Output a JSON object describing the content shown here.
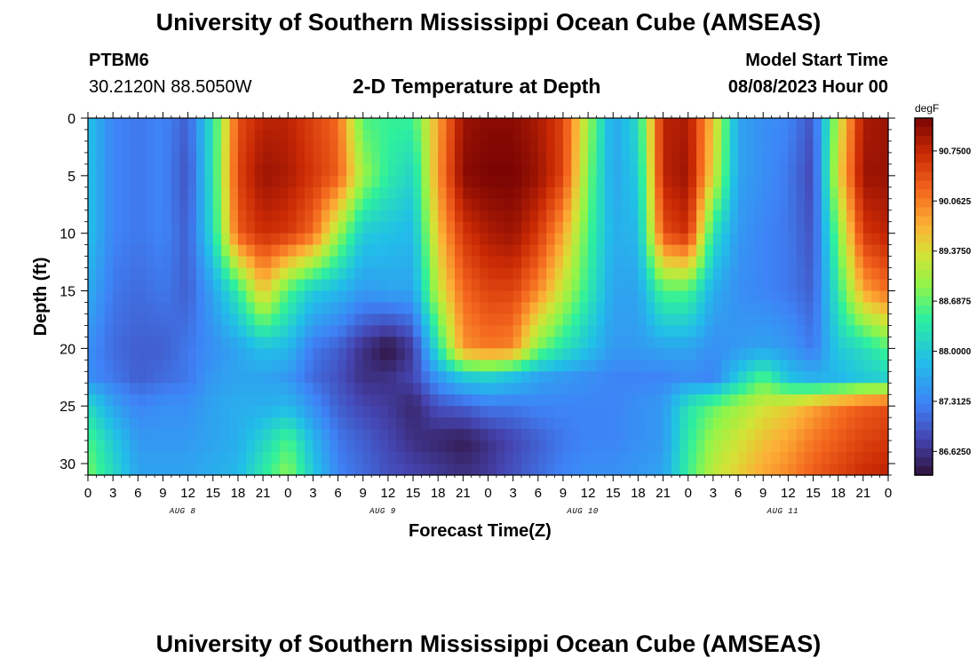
{
  "header": {
    "title": "University of Southern Mississippi Ocean Cube (AMSEAS)",
    "station_id": "PTBM6",
    "station_coords": "30.2120N  88.5050W",
    "plot_title": "2-D Temperature at Depth",
    "model_start_label": "Model Start Time",
    "model_start_value": "08/08/2023 Hour 00"
  },
  "footer": {
    "title": "University of Southern Mississippi Ocean Cube (AMSEAS)"
  },
  "chart_data": {
    "type": "heatmap",
    "title": "2-D Temperature at Depth",
    "xlabel": "Forecast Time(Z)",
    "ylabel": "Depth (ft)",
    "x_range_hours": [
      0,
      96
    ],
    "x_tick_labels": [
      "0",
      "3",
      "6",
      "9",
      "12",
      "15",
      "18",
      "21",
      "0",
      "3",
      "6",
      "9",
      "12",
      "15",
      "18",
      "21",
      "0",
      "3",
      "6",
      "9",
      "12",
      "15",
      "18",
      "21",
      "0",
      "3",
      "6",
      "9",
      "12",
      "15",
      "18",
      "21",
      "0"
    ],
    "day_labels": [
      "AUG 8",
      "AUG 9",
      "AUG 10",
      "AUG 11"
    ],
    "y_range_ft": [
      0,
      31
    ],
    "y_ticks": [
      0,
      5,
      10,
      15,
      20,
      25,
      30
    ],
    "colorbar": {
      "unit": "degF",
      "range": [
        86.3,
        91.2
      ],
      "tick_values": [
        86.625,
        87.3125,
        88.0,
        88.6875,
        89.375,
        90.0625,
        90.75
      ],
      "tick_labels": [
        "86.6250",
        "87.3125",
        "88.0000",
        "88.6875",
        "89.3750",
        "90.0625",
        "90.7500"
      ]
    },
    "profile_times_hours": [
      0,
      3,
      6,
      9,
      12,
      15,
      18,
      21,
      24,
      27,
      30,
      33,
      36,
      39,
      42,
      45,
      48,
      51,
      54,
      57,
      60,
      63,
      66,
      69,
      72,
      75,
      78,
      81,
      84,
      87,
      90,
      93,
      96
    ],
    "profile_depths_ft": [
      0,
      5,
      10,
      15,
      20,
      22.5,
      25,
      28,
      31
    ],
    "temperature_degF": [
      [
        87.9,
        87.9,
        87.9,
        87.7,
        87.4,
        87.4,
        88.2,
        88.6,
        88.8
      ],
      [
        87.3,
        87.3,
        87.3,
        87.2,
        87.1,
        87.2,
        87.6,
        88.0,
        88.2
      ],
      [
        87.2,
        87.2,
        87.2,
        87.1,
        87.0,
        87.0,
        87.3,
        87.5,
        87.6
      ],
      [
        87.3,
        87.3,
        87.3,
        87.2,
        87.0,
        87.1,
        87.4,
        87.5,
        87.6
      ],
      [
        87.0,
        86.9,
        87.0,
        87.0,
        87.2,
        87.2,
        87.4,
        87.5,
        87.6
      ],
      [
        88.3,
        88.3,
        88.2,
        87.6,
        87.4,
        87.5,
        87.6,
        87.6,
        87.7
      ],
      [
        90.4,
        90.5,
        90.3,
        88.4,
        87.6,
        87.6,
        87.7,
        87.7,
        87.8
      ],
      [
        90.8,
        91.0,
        90.7,
        89.6,
        87.9,
        87.6,
        87.7,
        88.1,
        88.4
      ],
      [
        90.8,
        90.9,
        90.6,
        88.6,
        87.8,
        87.5,
        87.8,
        88.6,
        88.9
      ],
      [
        90.5,
        90.6,
        90.2,
        88.0,
        87.2,
        87.1,
        87.4,
        87.8,
        88.0
      ],
      [
        90.2,
        90.3,
        89.0,
        87.8,
        87.0,
        86.9,
        87.0,
        87.2,
        87.3
      ],
      [
        88.6,
        89.0,
        88.0,
        87.5,
        86.6,
        86.6,
        86.8,
        87.0,
        87.1
      ],
      [
        88.5,
        88.4,
        87.9,
        87.6,
        86.3,
        86.6,
        86.7,
        86.8,
        86.9
      ],
      [
        88.5,
        88.1,
        87.8,
        87.6,
        86.7,
        86.8,
        86.5,
        86.6,
        86.8
      ],
      [
        89.8,
        89.9,
        89.6,
        89.2,
        88.3,
        87.5,
        86.9,
        86.5,
        86.7
      ],
      [
        91.0,
        91.1,
        90.6,
        90.2,
        89.9,
        88.0,
        87.0,
        86.4,
        86.6
      ],
      [
        91.1,
        91.2,
        90.9,
        90.5,
        90.1,
        88.1,
        87.2,
        86.6,
        86.7
      ],
      [
        91.1,
        91.2,
        91.0,
        90.5,
        90.0,
        87.9,
        87.2,
        86.8,
        86.9
      ],
      [
        90.9,
        91.0,
        90.6,
        90.0,
        88.8,
        87.6,
        87.3,
        87.0,
        87.1
      ],
      [
        90.5,
        90.5,
        89.8,
        89.2,
        88.3,
        87.5,
        87.3,
        87.2,
        87.3
      ],
      [
        89.0,
        88.8,
        88.6,
        88.4,
        87.9,
        87.4,
        87.3,
        87.3,
        87.4
      ],
      [
        87.6,
        87.6,
        87.7,
        87.6,
        87.5,
        87.3,
        87.3,
        87.3,
        87.4
      ],
      [
        88.2,
        88.0,
        87.8,
        87.6,
        87.5,
        87.3,
        87.4,
        87.4,
        87.5
      ],
      [
        90.8,
        90.8,
        90.4,
        88.6,
        87.6,
        87.3,
        87.5,
        87.5,
        87.6
      ],
      [
        90.9,
        91.0,
        90.7,
        88.6,
        87.6,
        87.4,
        88.3,
        88.4,
        88.5
      ],
      [
        89.6,
        89.4,
        88.3,
        87.7,
        87.4,
        87.3,
        88.7,
        89.0,
        89.2
      ],
      [
        87.6,
        87.6,
        87.5,
        87.4,
        87.5,
        88.0,
        89.0,
        89.3,
        89.5
      ],
      [
        87.4,
        87.4,
        87.3,
        87.3,
        87.6,
        88.6,
        89.3,
        89.6,
        89.8
      ],
      [
        87.3,
        87.2,
        87.2,
        87.2,
        87.5,
        87.9,
        89.5,
        89.8,
        90.0
      ],
      [
        86.9,
        86.8,
        86.9,
        87.0,
        87.2,
        87.7,
        89.8,
        90.1,
        90.3
      ],
      [
        89.2,
        89.4,
        88.8,
        88.4,
        88.0,
        87.8,
        90.1,
        90.3,
        90.5
      ],
      [
        90.9,
        91.0,
        90.6,
        89.8,
        88.2,
        88.0,
        90.3,
        90.5,
        90.7
      ],
      [
        91.0,
        91.0,
        90.8,
        90.2,
        88.6,
        88.1,
        90.4,
        90.6,
        90.8
      ]
    ]
  }
}
